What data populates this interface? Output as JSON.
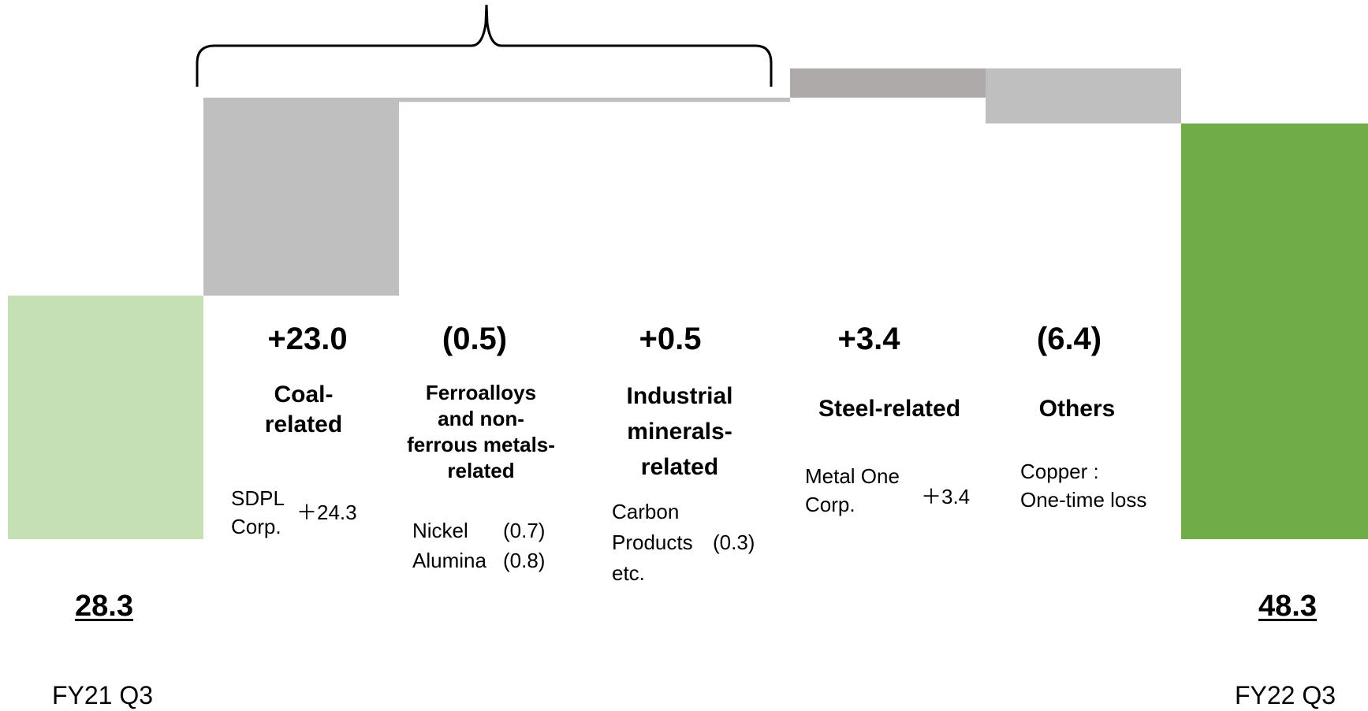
{
  "chart_data": {
    "type": "waterfall",
    "start": {
      "label": "FY21 Q3",
      "value": 28.3,
      "display": "28.3",
      "color": "#c5e0b4"
    },
    "end": {
      "label": "FY22 Q3",
      "value": 48.3,
      "display": "48.3",
      "color": "#70ad47"
    },
    "bar_color": "#bfbfbf",
    "steps": [
      {
        "id": "coal",
        "display": "+23.0",
        "value": 23.0,
        "category": "Coal-related",
        "category_lines": [
          "Coal-",
          "related"
        ],
        "color": "#bfbfbf",
        "details": [
          {
            "name_lines": [
              "SDPL",
              "Corp."
            ],
            "value": "＋24.3"
          }
        ]
      },
      {
        "id": "ferro",
        "display": "(0.5)",
        "value": -0.5,
        "category": "Ferroalloys and non-ferrous metals-related",
        "category_lines": [
          "Ferroalloys",
          "and non-",
          "ferrous metals-",
          "related"
        ],
        "color": "#bfbfbf",
        "details": [
          {
            "name": "Nickel",
            "value": "(0.7)"
          },
          {
            "name": "Alumina",
            "value": "(0.8)"
          }
        ]
      },
      {
        "id": "industrial",
        "display": "+0.5",
        "value": 0.5,
        "category": "Industrial minerals-related",
        "category_lines": [
          "Industrial",
          "minerals-",
          "related"
        ],
        "color": "#bfbfbf",
        "details": [
          {
            "name_lines": [
              "Carbon",
              "Products",
              "etc."
            ],
            "value": "(0.3)"
          }
        ]
      },
      {
        "id": "steel",
        "display": "+3.4",
        "value": 3.4,
        "category": "Steel-related",
        "category_lines": [
          "Steel-related"
        ],
        "color": "#aeaaaa",
        "details": [
          {
            "name_lines": [
              "Metal One",
              "Corp."
            ],
            "value": "＋3.4"
          }
        ]
      },
      {
        "id": "others",
        "display": "(6.4)",
        "value": -6.4,
        "category": "Others",
        "category_lines": [
          "Others"
        ],
        "color": "#bfbfbf",
        "details": [
          {
            "name_lines": [
              "Copper :",
              "One-time loss"
            ]
          }
        ]
      }
    ],
    "axis_baseline": 0,
    "gridlines": false,
    "legend": "none"
  }
}
